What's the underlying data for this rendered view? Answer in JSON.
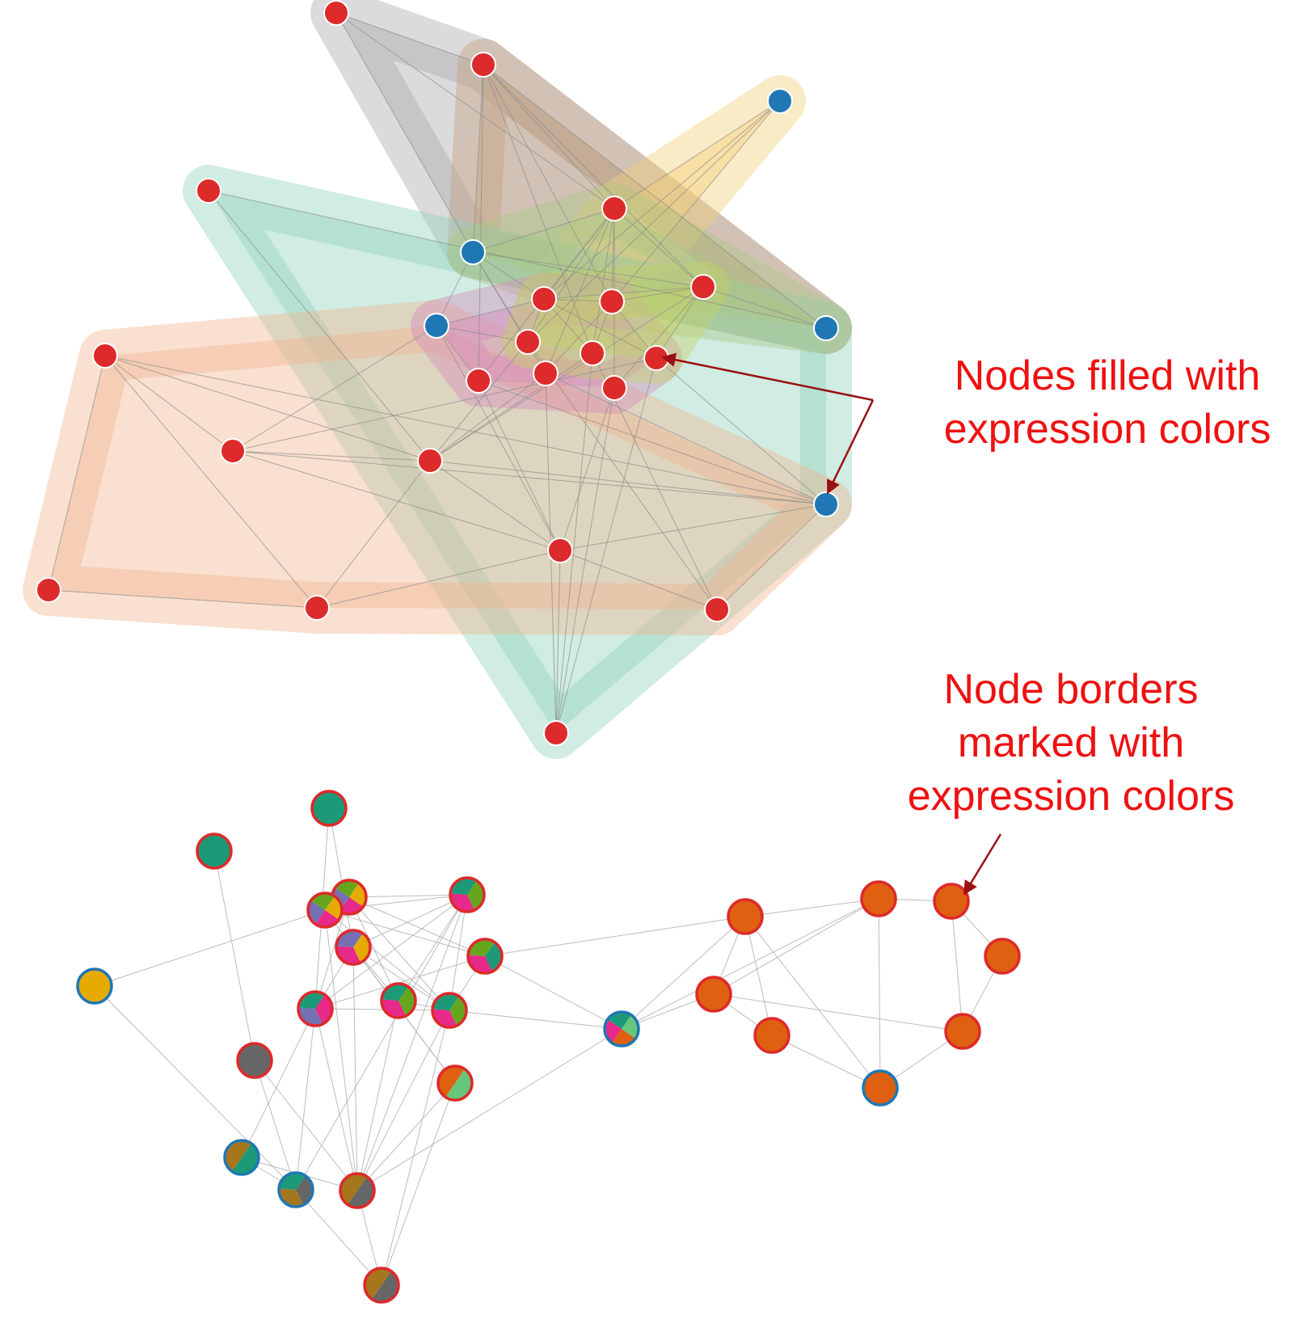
{
  "annotations": {
    "fill": {
      "lines": [
        "Nodes filled with",
        "expression colors"
      ]
    },
    "border": {
      "lines": [
        "Node borders",
        "marked with",
        "expression colors"
      ]
    }
  },
  "colors": {
    "annotation_text": "#ee1111",
    "arrow": "#9b1010",
    "edge": "#b0b0b0",
    "node_red": "#dd2a2a",
    "node_blue": "#1f77b4",
    "expression": {
      "green": "#1c9a78",
      "orange": "#de6010",
      "yellow": "#e6ab02",
      "pink": "#e7298a",
      "purple": "#7570b3",
      "gray": "#666666",
      "olive": "#a6761d",
      "lightgreen": "#66c77c",
      "lime": "#66a61e"
    }
  },
  "group_colors": {
    "gray": "#a9a9ad",
    "tan": "#c4a07e",
    "yellow": "#f2d07a",
    "teal": "#8fd1bd",
    "salmon": "#f1b690",
    "green": "#a9c882",
    "pink": "#d58abc",
    "lime": "#c3d267"
  }
}
